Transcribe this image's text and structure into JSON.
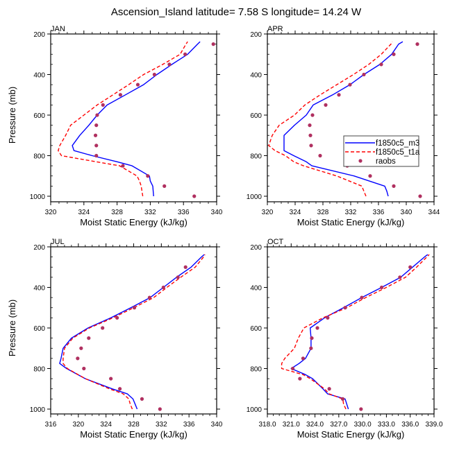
{
  "chart_data": {
    "type": "line",
    "title": "Ascension_Island  latitude= 7.58 S longitude= 14.24 W",
    "legend": {
      "placement": "right-middle of APR panel",
      "entries": [
        {
          "name": "f1850c5_m3",
          "style": "solid",
          "color": "#0000ff"
        },
        {
          "name": "f1850c5_t1a",
          "style": "dashed",
          "color": "#ff0000"
        },
        {
          "name": "raobs",
          "style": "markers",
          "color": "#b03060"
        }
      ]
    },
    "panels": [
      {
        "label": "JAN",
        "xlabel": "Moist Static Energy (kJ/kg)",
        "ylabel": "Pressure (mb)",
        "xlim": [
          320,
          340
        ],
        "xticks": [
          "320",
          "324",
          "328",
          "332",
          "336",
          "340"
        ],
        "xtick_values": [
          320,
          324,
          328,
          332,
          336,
          340
        ],
        "ylim": [
          200,
          1000
        ],
        "yticks": [
          "200",
          "400",
          "600",
          "800",
          "1000"
        ],
        "ytick_values": [
          200,
          400,
          600,
          800,
          1000
        ],
        "series": [
          {
            "name": "f1850c5_m3",
            "pressure": [
              1000,
              950,
              925,
              900,
              850,
              830,
              800,
              775,
              750,
              700,
              650,
              600,
              550,
              500,
              450,
              400,
              350,
              300,
              250,
              238
            ],
            "values": [
              332.4,
              332.3,
              332.0,
              331.9,
              329.8,
              328.0,
              325.0,
              322.8,
              322.6,
              323.5,
              324.6,
              325.6,
              326.8,
              329.0,
              331.2,
              332.8,
              334.6,
              336.5,
              337.7,
              338.0
            ]
          },
          {
            "name": "f1850c5_t1a",
            "pressure": [
              1000,
              950,
              925,
              900,
              850,
              830,
              800,
              775,
              750,
              700,
              650,
              600,
              550,
              500,
              450,
              400,
              350,
              300,
              250,
              238
            ],
            "values": [
              331.1,
              330.9,
              330.7,
              330.4,
              328.3,
              325.5,
              321.3,
              320.9,
              321.1,
              321.8,
              322.4,
              324.0,
              325.6,
              327.5,
              329.4,
              331.2,
              333.5,
              335.6,
              336.3,
              336.5
            ]
          },
          {
            "name": "raobs",
            "pressure": [
              250,
              300,
              350,
              400,
              450,
              500,
              550,
              600,
              650,
              700,
              750,
              800,
              850,
              900,
              950,
              1000
            ],
            "values": [
              339.6,
              336.2,
              334.3,
              332.5,
              330.5,
              328.4,
              326.3,
              325.6,
              325.5,
              325.4,
              325.5,
              325.5,
              328.7,
              331.7,
              333.7,
              337.3
            ]
          }
        ]
      },
      {
        "label": "APR",
        "xlabel": "Moist Static Energy (kJ/kg)",
        "ylabel": "",
        "xlim": [
          320,
          344
        ],
        "xticks": [
          "320",
          "324",
          "328",
          "332",
          "336",
          "340",
          "344"
        ],
        "xtick_values": [
          320,
          324,
          328,
          332,
          336,
          340,
          344
        ],
        "ylim": [
          200,
          1000
        ],
        "yticks": [
          "200",
          "400",
          "600",
          "800",
          "1000"
        ],
        "ytick_values": [
          200,
          400,
          600,
          800,
          1000
        ],
        "series": [
          {
            "name": "f1850c5_m3",
            "pressure": [
              1000,
              975,
              950,
              900,
              850,
              830,
              800,
              775,
              750,
              700,
              650,
              600,
              550,
              500,
              450,
              400,
              350,
              300,
              250,
              238
            ],
            "values": [
              337.4,
              337.2,
              336.9,
              332.5,
              326.4,
              325.6,
              323.8,
              322.4,
              322.4,
              322.4,
              323.9,
              325.6,
              326.6,
              329.4,
              331.9,
              333.9,
              336.2,
              337.9,
              338.9,
              339.5
            ]
          },
          {
            "name": "f1850c5_t1a",
            "pressure": [
              1000,
              975,
              950,
              900,
              850,
              830,
              800,
              775,
              750,
              700,
              650,
              600,
              550,
              500,
              450,
              400,
              350,
              300,
              250,
              238
            ],
            "values": [
              334.2,
              333.9,
              333.6,
              330.0,
              325.2,
              323.8,
              322.6,
              321.1,
              320.2,
              320.7,
              321.7,
              323.9,
              325.4,
              327.6,
              330.0,
              332.4,
              334.6,
              336.4,
              337.8,
              338.0
            ]
          },
          {
            "name": "raobs",
            "pressure": [
              250,
              300,
              350,
              400,
              450,
              500,
              550,
              600,
              650,
              700,
              750,
              800,
              850,
              900,
              950,
              1000
            ],
            "values": [
              341.6,
              338.2,
              336.4,
              333.9,
              331.9,
              330.3,
              328.4,
              326.5,
              326.1,
              326.2,
              326.3,
              327.6,
              331.5,
              334.8,
              338.2,
              342.0
            ]
          }
        ]
      },
      {
        "label": "JUL",
        "xlabel": "Moist Static Energy (kJ/kg)",
        "ylabel": "Pressure (mb)",
        "xlim": [
          316,
          340
        ],
        "xticks": [
          "316",
          "320",
          "324",
          "328",
          "332",
          "336",
          "340"
        ],
        "xtick_values": [
          316,
          320,
          324,
          328,
          332,
          336,
          340
        ],
        "ylim": [
          200,
          1000
        ],
        "yticks": [
          "200",
          "400",
          "600",
          "800",
          "1000"
        ],
        "ytick_values": [
          200,
          400,
          600,
          800,
          1000
        ],
        "series": [
          {
            "name": "f1850c5_m3",
            "pressure": [
              1000,
              975,
              950,
              925,
              900,
              850,
              800,
              775,
              750,
              700,
              650,
              600,
              550,
              500,
              450,
              400,
              350,
              300,
              250,
              238
            ],
            "values": [
              328.5,
              328.2,
              327.9,
              327.1,
              324.9,
              321.0,
              318.3,
              317.3,
              317.5,
              317.8,
              319.0,
              321.4,
              324.7,
              327.6,
              330.4,
              332.3,
              334.2,
              336.3,
              337.8,
              338.2
            ]
          },
          {
            "name": "f1850c5_t1a",
            "pressure": [
              1000,
              975,
              950,
              925,
              900,
              850,
              800,
              775,
              750,
              700,
              650,
              600,
              550,
              500,
              450,
              400,
              350,
              300,
              250,
              238
            ],
            "values": [
              327.8,
              327.5,
              327.3,
              326.5,
              324.5,
              321.0,
              318.4,
              317.8,
              317.8,
              318.0,
              319.2,
              321.6,
              325.0,
              328.0,
              330.9,
              332.8,
              334.8,
              336.9,
              338.1,
              338.3
            ]
          },
          {
            "name": "raobs",
            "pressure": [
              300,
              350,
              400,
              450,
              500,
              550,
              600,
              650,
              700,
              750,
              800,
              850,
              900,
              950,
              1000
            ],
            "values": [
              335.5,
              334.4,
              332.3,
              330.3,
              328.1,
              325.6,
              323.5,
              321.5,
              320.4,
              319.9,
              320.8,
              324.7,
              326.0,
              329.2,
              331.8
            ]
          }
        ]
      },
      {
        "label": "OCT",
        "xlabel": "Moist Static Energy (kJ/kg)",
        "ylabel": "",
        "xlim": [
          318.0,
          339.0
        ],
        "xticks": [
          "318.0",
          "321.0",
          "324.0",
          "327.0",
          "330.0",
          "333.0",
          "336.0",
          "339.0"
        ],
        "xtick_values": [
          318,
          321,
          324,
          327,
          330,
          333,
          336,
          339
        ],
        "ylim": [
          200,
          1000
        ],
        "yticks": [
          "200",
          "400",
          "600",
          "800",
          "1000"
        ],
        "ytick_values": [
          200,
          400,
          600,
          800,
          1000
        ],
        "series": [
          {
            "name": "f1850c5_m3",
            "pressure": [
              1000,
              975,
              950,
              925,
              900,
              850,
              830,
              800,
              775,
              750,
              700,
              650,
              600,
              550,
              500,
              450,
              400,
              350,
              300,
              250,
              238
            ],
            "values": [
              328.2,
              328.0,
              327.8,
              325.6,
              325.0,
              323.7,
              322.8,
              321.0,
              322.0,
              322.8,
              323.5,
              323.5,
              323.4,
              325.2,
              327.6,
              329.9,
              332.4,
              334.8,
              336.3,
              337.8,
              338.2
            ]
          },
          {
            "name": "f1850c5_t1a",
            "pressure": [
              1000,
              975,
              950,
              925,
              900,
              850,
              830,
              800,
              775,
              750,
              700,
              650,
              600,
              550,
              500,
              450,
              400,
              350,
              300,
              250,
              238
            ],
            "values": [
              327.9,
              327.6,
              327.5,
              325.8,
              325.2,
              323.4,
              322.5,
              319.8,
              319.8,
              320.2,
              321.4,
              321.9,
              322.6,
              325.0,
              328.0,
              330.4,
              333.0,
              335.4,
              336.8,
              338.1,
              338.4
            ]
          },
          {
            "name": "raobs",
            "pressure": [
              300,
              350,
              400,
              450,
              500,
              550,
              600,
              650,
              700,
              750,
              800,
              850,
              900,
              950,
              1000
            ],
            "values": [
              336.0,
              334.7,
              332.4,
              329.9,
              327.8,
              325.6,
              324.3,
              323.6,
              323.5,
              322.5,
              321.2,
              322.1,
              325.8,
              327.5,
              329.8
            ]
          }
        ]
      }
    ]
  }
}
